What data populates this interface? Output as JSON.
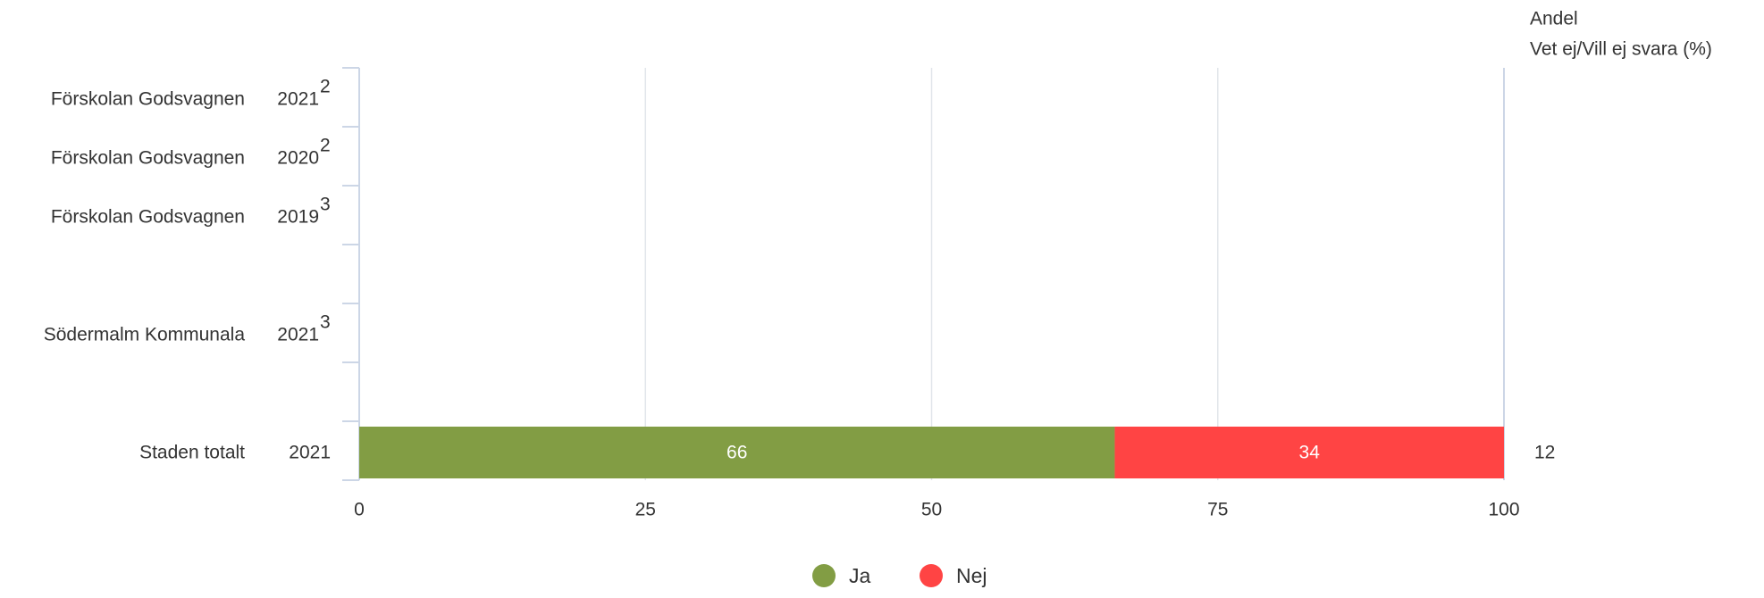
{
  "chart_data": {
    "type": "bar",
    "orientation": "horizontal",
    "stacked": true,
    "title": "",
    "xlabel": "",
    "ylabel": "",
    "xlim": [
      0,
      100
    ],
    "x_ticks": [
      "0",
      "25",
      "50",
      "75",
      "100"
    ],
    "grid": true,
    "legend_position": "bottom-center",
    "right_column_header": [
      "Andel",
      "Vet ej/Vill ej svara (%)"
    ],
    "rows": [
      {
        "label": "Förskolan Godsvagnen",
        "year": "2021",
        "note": "2",
        "extra": ""
      },
      {
        "label": "Förskolan Godsvagnen",
        "year": "2020",
        "note": "2",
        "extra": ""
      },
      {
        "label": "Förskolan Godsvagnen",
        "year": "2019",
        "note": "3",
        "extra": ""
      },
      {
        "label": "",
        "year": "",
        "note": "",
        "extra": ""
      },
      {
        "label": "Södermalm Kommunala",
        "year": "2021",
        "note": "3",
        "extra": ""
      },
      {
        "label": "",
        "year": "",
        "note": "",
        "extra": ""
      },
      {
        "label": "Staden totalt",
        "year": "2021",
        "note": "",
        "extra": "12"
      }
    ],
    "series": [
      {
        "name": "Ja",
        "color": "#829d44",
        "values": [
          null,
          null,
          null,
          null,
          null,
          null,
          66
        ]
      },
      {
        "name": "Nej",
        "color": "#ff4444",
        "values": [
          null,
          null,
          null,
          null,
          null,
          null,
          34
        ]
      }
    ]
  }
}
